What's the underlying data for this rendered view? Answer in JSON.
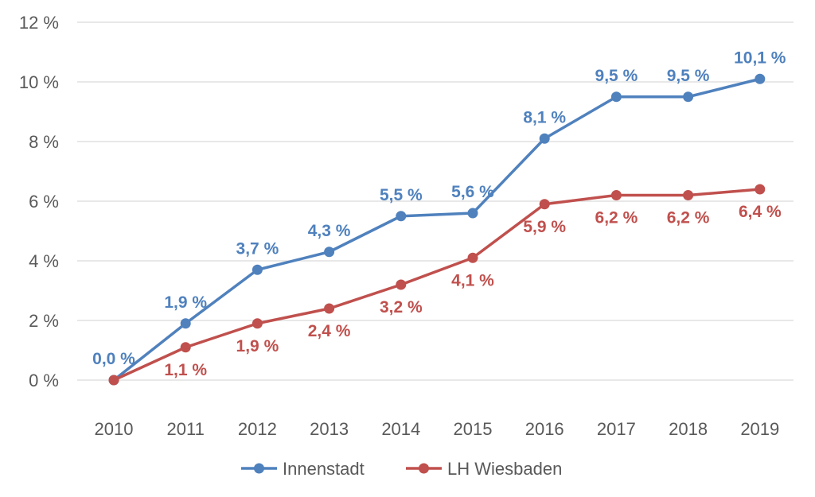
{
  "chart_data": {
    "type": "line",
    "title": "",
    "xlabel": "",
    "ylabel": "",
    "categories": [
      "2010",
      "2011",
      "2012",
      "2013",
      "2014",
      "2015",
      "2016",
      "2017",
      "2018",
      "2019"
    ],
    "ylim": [
      0,
      12
    ],
    "y_ticks": [
      {
        "value": 0,
        "label": "0 %"
      },
      {
        "value": 2,
        "label": "2 %"
      },
      {
        "value": 4,
        "label": "4 %"
      },
      {
        "value": 6,
        "label": "6 %"
      },
      {
        "value": 8,
        "label": "8 %"
      },
      {
        "value": 10,
        "label": "10 %"
      },
      {
        "value": 12,
        "label": "12 %"
      }
    ],
    "grid": true,
    "legend_position": "bottom",
    "series": [
      {
        "name": "Innenstadt",
        "color": "#4f81bd",
        "label_position": "above",
        "values": [
          0.0,
          1.9,
          3.7,
          4.3,
          5.5,
          5.6,
          8.1,
          9.5,
          9.5,
          10.1
        ],
        "labels": [
          "0,0 %",
          "1,9 %",
          "3,7 %",
          "4,3 %",
          "5,5 %",
          "5,6 %",
          "8,1 %",
          "9,5 %",
          "9,5 %",
          "10,1 %"
        ]
      },
      {
        "name": "LH Wiesbaden",
        "color": "#c0504d",
        "label_position": "below",
        "values": [
          0.0,
          1.1,
          1.9,
          2.4,
          3.2,
          4.1,
          5.9,
          6.2,
          6.2,
          6.4
        ],
        "labels": [
          "",
          "1,1 %",
          "1,9 %",
          "2,4 %",
          "3,2 %",
          "4,1 %",
          "5,9 %",
          "6,2 %",
          "6,2 %",
          "6,4 %"
        ]
      }
    ]
  }
}
